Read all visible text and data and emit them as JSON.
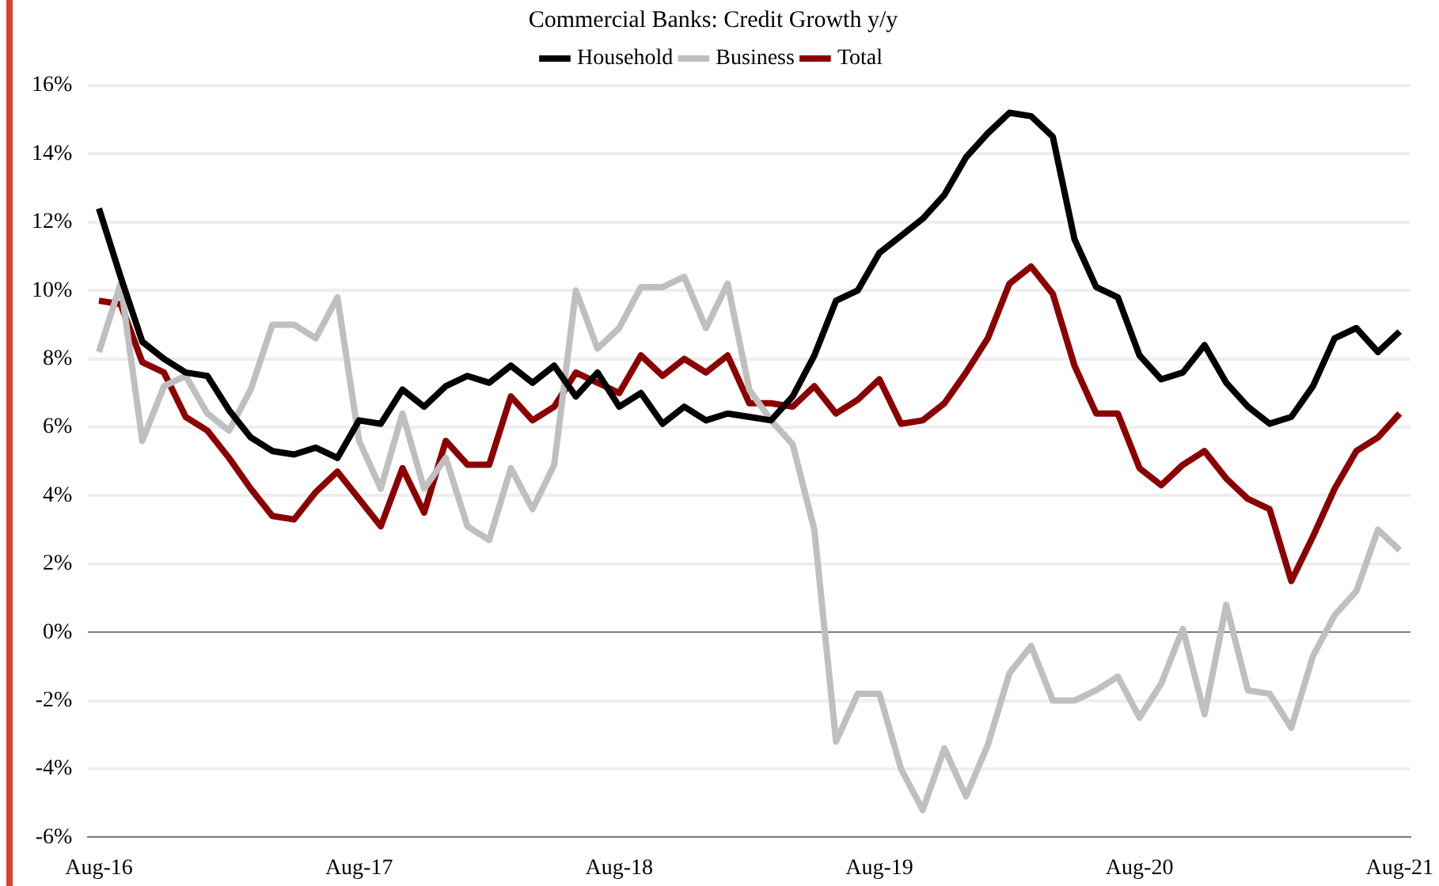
{
  "chart_data": {
    "type": "line",
    "title": "Commercial Banks: Credit Growth y/y",
    "categories": [
      "Aug-16",
      null,
      null,
      null,
      null,
      null,
      null,
      null,
      null,
      null,
      null,
      null,
      "Aug-17",
      null,
      null,
      null,
      null,
      null,
      null,
      null,
      null,
      null,
      null,
      null,
      "Aug-18",
      null,
      null,
      null,
      null,
      null,
      null,
      null,
      null,
      null,
      null,
      null,
      "Aug-19",
      null,
      null,
      null,
      null,
      null,
      null,
      null,
      null,
      null,
      null,
      null,
      "Aug-20",
      null,
      null,
      null,
      null,
      null,
      null,
      null,
      null,
      null,
      null,
      null,
      "Aug-21"
    ],
    "series": [
      {
        "name": "Household",
        "color": "#000000",
        "values": [
          12.4,
          10.4,
          8.5,
          8.0,
          7.6,
          7.5,
          6.5,
          5.7,
          5.3,
          5.2,
          5.4,
          5.1,
          6.2,
          6.1,
          7.1,
          6.6,
          7.2,
          7.5,
          7.3,
          7.8,
          7.3,
          7.8,
          6.9,
          7.6,
          6.6,
          7.0,
          6.1,
          6.6,
          6.2,
          6.4,
          6.3,
          6.2,
          6.9,
          8.1,
          9.7,
          10.0,
          11.1,
          11.6,
          12.1,
          12.8,
          13.9,
          14.6,
          15.2,
          15.1,
          14.5,
          11.5,
          10.1,
          9.8,
          8.1,
          7.4,
          7.6,
          8.4,
          7.3,
          6.6,
          6.1,
          6.3,
          7.2,
          8.6,
          8.9,
          8.2,
          8.8
        ]
      },
      {
        "name": "Business",
        "color": "#bfbfbf",
        "values": [
          8.2,
          10.2,
          5.6,
          7.2,
          7.5,
          6.4,
          5.9,
          7.1,
          9.0,
          9.0,
          8.6,
          9.8,
          5.6,
          4.2,
          6.4,
          4.2,
          5.1,
          3.1,
          2.7,
          4.8,
          3.6,
          4.9,
          10.0,
          8.3,
          8.9,
          10.1,
          10.1,
          10.4,
          8.9,
          10.2,
          7.1,
          6.2,
          5.5,
          3.0,
          -3.2,
          -1.8,
          -1.8,
          -4.0,
          -5.2,
          -3.4,
          -4.8,
          -3.3,
          -1.2,
          -0.4,
          -2.0,
          -2.0,
          -1.7,
          -1.3,
          -2.5,
          -1.5,
          0.1,
          -2.4,
          0.8,
          -1.7,
          -1.8,
          -2.8,
          -0.7,
          0.5,
          1.2,
          3.0,
          2.4
        ]
      },
      {
        "name": "Total",
        "color": "#8b0000",
        "values": [
          9.7,
          9.6,
          7.9,
          7.6,
          6.3,
          5.9,
          5.1,
          4.2,
          3.4,
          3.3,
          4.1,
          4.7,
          3.9,
          3.1,
          4.8,
          3.5,
          5.6,
          4.9,
          4.9,
          6.9,
          6.2,
          6.6,
          7.6,
          7.3,
          7.0,
          8.1,
          7.5,
          8.0,
          7.6,
          8.1,
          6.7,
          6.7,
          6.6,
          7.2,
          6.4,
          6.8,
          7.4,
          6.1,
          6.2,
          6.7,
          7.6,
          8.6,
          10.2,
          10.7,
          9.9,
          7.8,
          6.4,
          6.4,
          4.8,
          4.3,
          4.9,
          5.3,
          4.5,
          3.9,
          3.6,
          1.5,
          2.8,
          4.2,
          5.3,
          5.7,
          6.4
        ]
      }
    ],
    "ylim": [
      -6,
      16
    ],
    "yticks": [
      {
        "value": -6,
        "label": "-6%"
      },
      {
        "value": -4,
        "label": "-4%"
      },
      {
        "value": -2,
        "label": "-2%"
      },
      {
        "value": 0,
        "label": "0%"
      },
      {
        "value": 2,
        "label": "2%"
      },
      {
        "value": 4,
        "label": "4%"
      },
      {
        "value": 6,
        "label": "6%"
      },
      {
        "value": 8,
        "label": "8%"
      },
      {
        "value": 10,
        "label": "10%"
      },
      {
        "value": 12,
        "label": "12%"
      },
      {
        "value": 14,
        "label": "14%"
      },
      {
        "value": 16,
        "label": "16%"
      }
    ],
    "grid": "y",
    "legend": "top",
    "marker": "none",
    "line_style": "solid"
  }
}
